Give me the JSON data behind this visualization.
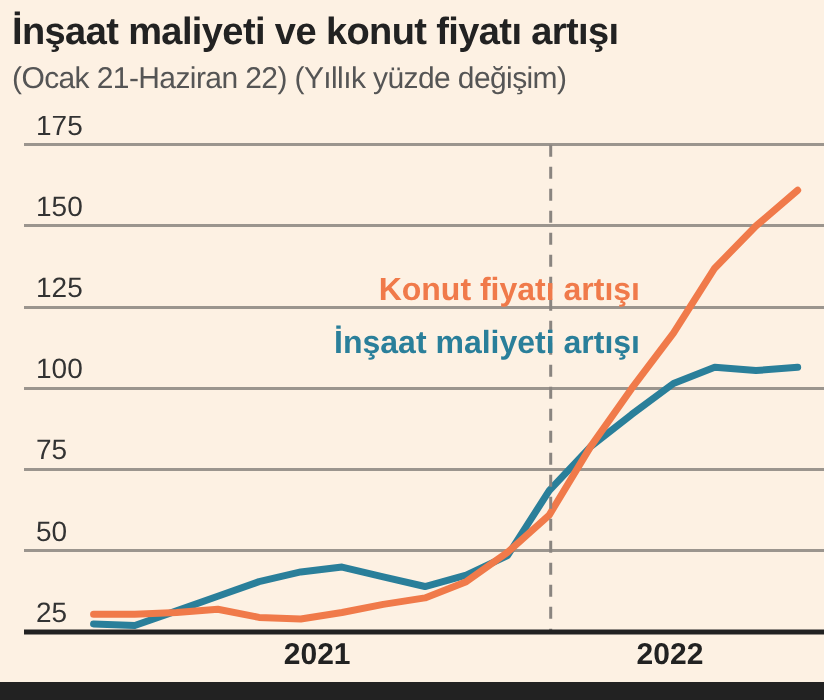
{
  "chart_data": {
    "type": "line",
    "title": "İnşaat maliyeti ve konut fiyatı artışı",
    "subtitle": "(Ocak 21-Haziran 22) (Yıllık yüzde değişim)",
    "x": [
      2021,
      2021.083,
      2021.167,
      2021.25,
      2021.333,
      2021.417,
      2021.5,
      2021.583,
      2021.667,
      2021.75,
      2021.833,
      2021.917,
      2022,
      2022.083,
      2022.167,
      2022.25,
      2022.333,
      2022.417
    ],
    "series": [
      {
        "name": "Konut fiyatı artışı",
        "color": "#f07a4a",
        "values": [
          30.5,
          30.5,
          31,
          32,
          29.5,
          29,
          31,
          33.5,
          35.5,
          40.5,
          49.5,
          61,
          82,
          100,
          117,
          137,
          150,
          161
        ]
      },
      {
        "name": "İnşaat maliyeti artışı",
        "color": "#2a7f9a",
        "values": [
          27.5,
          27,
          31.5,
          36,
          40.5,
          43.5,
          45,
          42,
          39,
          42.5,
          48.5,
          68.5,
          82,
          92,
          101.5,
          106.5,
          105.5,
          106.5
        ]
      }
    ],
    "xlim": [
      2020.86,
      2022.47
    ],
    "xticks": [
      {
        "value": 2021.45,
        "label": "2021"
      },
      {
        "value": 2022.16,
        "label": "2022"
      }
    ],
    "ylim": [
      25,
      175
    ],
    "yticks": [
      25,
      50,
      75,
      100,
      125,
      150,
      175
    ],
    "ref_lines": [
      {
        "axis": "x",
        "value": 2021.92,
        "color": "#8a8580",
        "line_style": "dashed"
      }
    ],
    "grid": "y",
    "legend": false,
    "marker": "none",
    "line_style": "solid"
  }
}
